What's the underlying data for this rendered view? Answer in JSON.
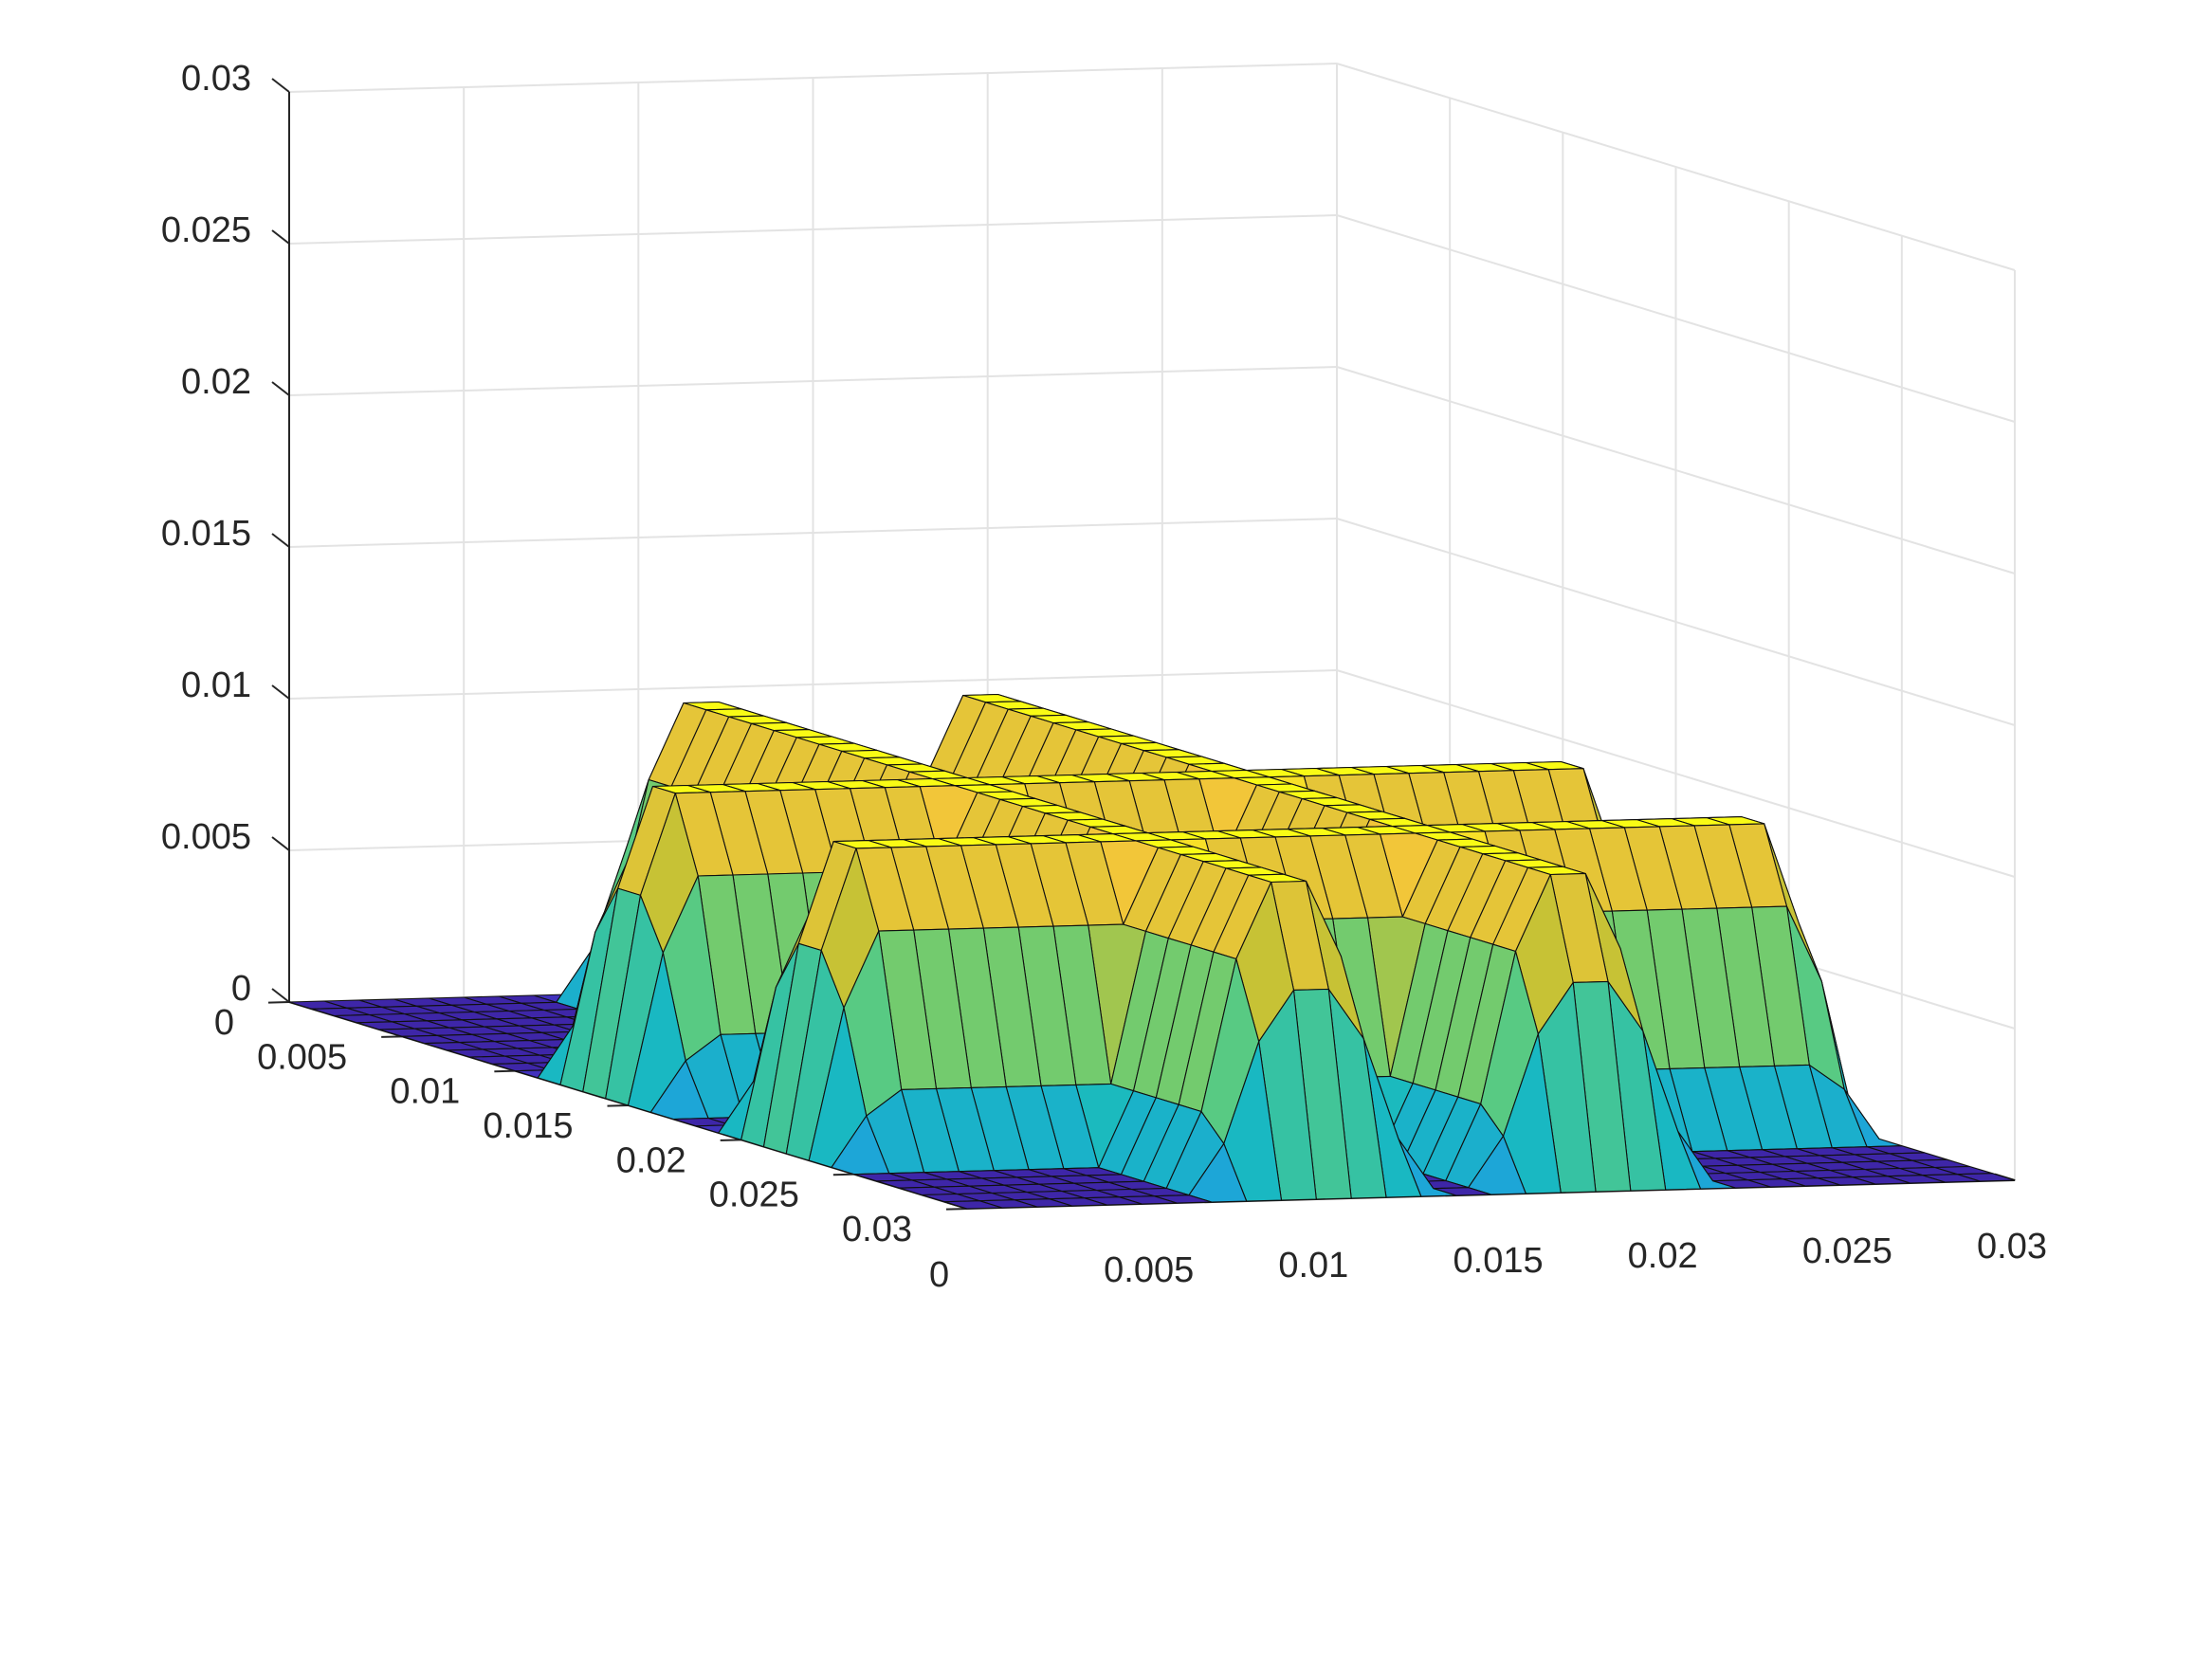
{
  "chart_data": {
    "type": "surface",
    "title": "",
    "xlabel": "",
    "ylabel": "",
    "zlabel": "",
    "grid": true,
    "colormap": "parula",
    "xlim": [
      0,
      0.03
    ],
    "ylim": [
      0,
      0.03
    ],
    "zlim": [
      0,
      0.03
    ],
    "x_ticks": [
      "0",
      "0.005",
      "0.01",
      "0.015",
      "0.02",
      "0.025",
      "0.03"
    ],
    "y_ticks": [
      "0",
      "0.005",
      "0.01",
      "0.015",
      "0.02",
      "0.025",
      "0.03"
    ],
    "z_ticks": [
      "0",
      "0.005",
      "0.01",
      "0.015",
      "0.02",
      "0.025",
      "0.03"
    ],
    "grid_points": 31,
    "base_value": 0,
    "ridges": [
      {
        "axis": "along_y",
        "position": 0.0135,
        "from": 0.0005,
        "to": 0.0295,
        "height": 0.01,
        "halfwidth": 0.001
      },
      {
        "axis": "along_y",
        "position": 0.0215,
        "from": 0.0005,
        "to": 0.0295,
        "height": 0.01,
        "halfwidth": 0.001
      },
      {
        "axis": "along_x",
        "position": 0.0105,
        "from": 0.0005,
        "to": 0.0295,
        "height": 0.01,
        "halfwidth": 0.001
      },
      {
        "axis": "along_x",
        "position": 0.0185,
        "from": 0.0005,
        "to": 0.0295,
        "height": 0.01,
        "halfwidth": 0.001
      }
    ],
    "colors": {
      "low": "#3e26a8",
      "mid": "#2dbdb5",
      "high": "#f9fb15",
      "axis": "#262626",
      "grid": "#e3e3e3"
    }
  }
}
